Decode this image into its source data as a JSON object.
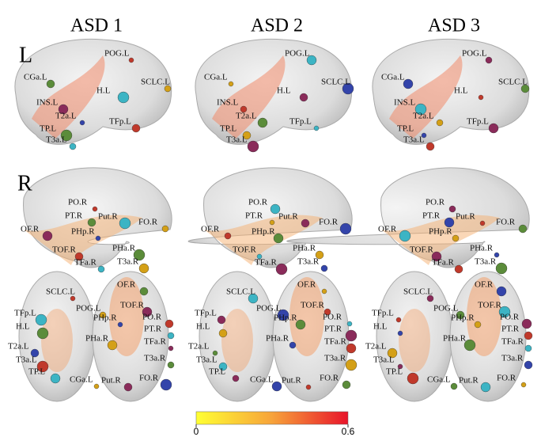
{
  "row_labels": [
    "L",
    "R"
  ],
  "columns": [
    {
      "title": "ASD 1",
      "left_lateral": [
        "POG.L",
        "CGa.L",
        "H.L",
        "SCLC.L",
        "INS.L",
        "T2a.L",
        "TFp.L",
        "TP.L",
        "T3a.L"
      ],
      "right_lateral": [
        "PO.R",
        "PT.R",
        "Put.R",
        "FO.R",
        "OF.R",
        "PHp.R",
        "TOF.R",
        "PHa.R",
        "TFa.R",
        "T3a.R"
      ],
      "dorsal": [
        "SCLC.L",
        "OF.R",
        "TFp.L",
        "POG.L",
        "TOF.R",
        "PHp.R",
        "PO.R",
        "H.L",
        "PT.R",
        "PHa.R",
        "TFa.R",
        "T2a.L",
        "T3a.L",
        "T3a.R",
        "TP.L",
        "CGa.L",
        "Put.R",
        "FO.R"
      ]
    },
    {
      "title": "ASD 2",
      "left_lateral": [
        "POG.L",
        "CGa.L",
        "H.L",
        "SCLC.L",
        "INS.L",
        "T2a.L",
        "TFp.L",
        "TP.L",
        "T3a.L"
      ],
      "right_lateral": [
        "PO.R",
        "PT.R",
        "Put.R",
        "FO.R",
        "OF.R",
        "PHp.R",
        "TOF.R",
        "PHa.R",
        "TFa.R",
        "T3a.R"
      ],
      "dorsal": [
        "SCLC.L",
        "OF.R",
        "TFp.L",
        "POG.L",
        "TOF.R",
        "PHp.R",
        "PO.R",
        "H.L",
        "PT.R",
        "PHa.R",
        "TFa.R",
        "T2a.L",
        "T3a.L",
        "T3a.R",
        "TP.L",
        "CGa.L",
        "Put.R",
        "FO.R"
      ]
    },
    {
      "title": "ASD 3",
      "left_lateral": [
        "POG.L",
        "CGa.L",
        "H.L",
        "SCLC.L",
        "INS.L",
        "T2a.L",
        "TFp.L",
        "TP.L",
        "T3a.L"
      ],
      "right_lateral": [
        "PO.R",
        "PT.R",
        "Put.R",
        "FO.R",
        "OF.R",
        "PHp.R",
        "TOF.R",
        "PHa.R",
        "TFa.R",
        "T3a.R"
      ],
      "dorsal": [
        "SCLC.L",
        "OF.R",
        "TFp.L",
        "POG.L",
        "TOF.R",
        "PHp.R",
        "PO.R",
        "H.L",
        "PT.R",
        "PHa.R",
        "TFa.R",
        "T2a.L",
        "T3a.L",
        "T3a.R",
        "TP.L",
        "CGa.L",
        "Put.R",
        "FO.R"
      ]
    }
  ],
  "colorbar": {
    "range": [
      0,
      0.6
    ],
    "ticks": [
      0,
      0.6
    ]
  }
}
